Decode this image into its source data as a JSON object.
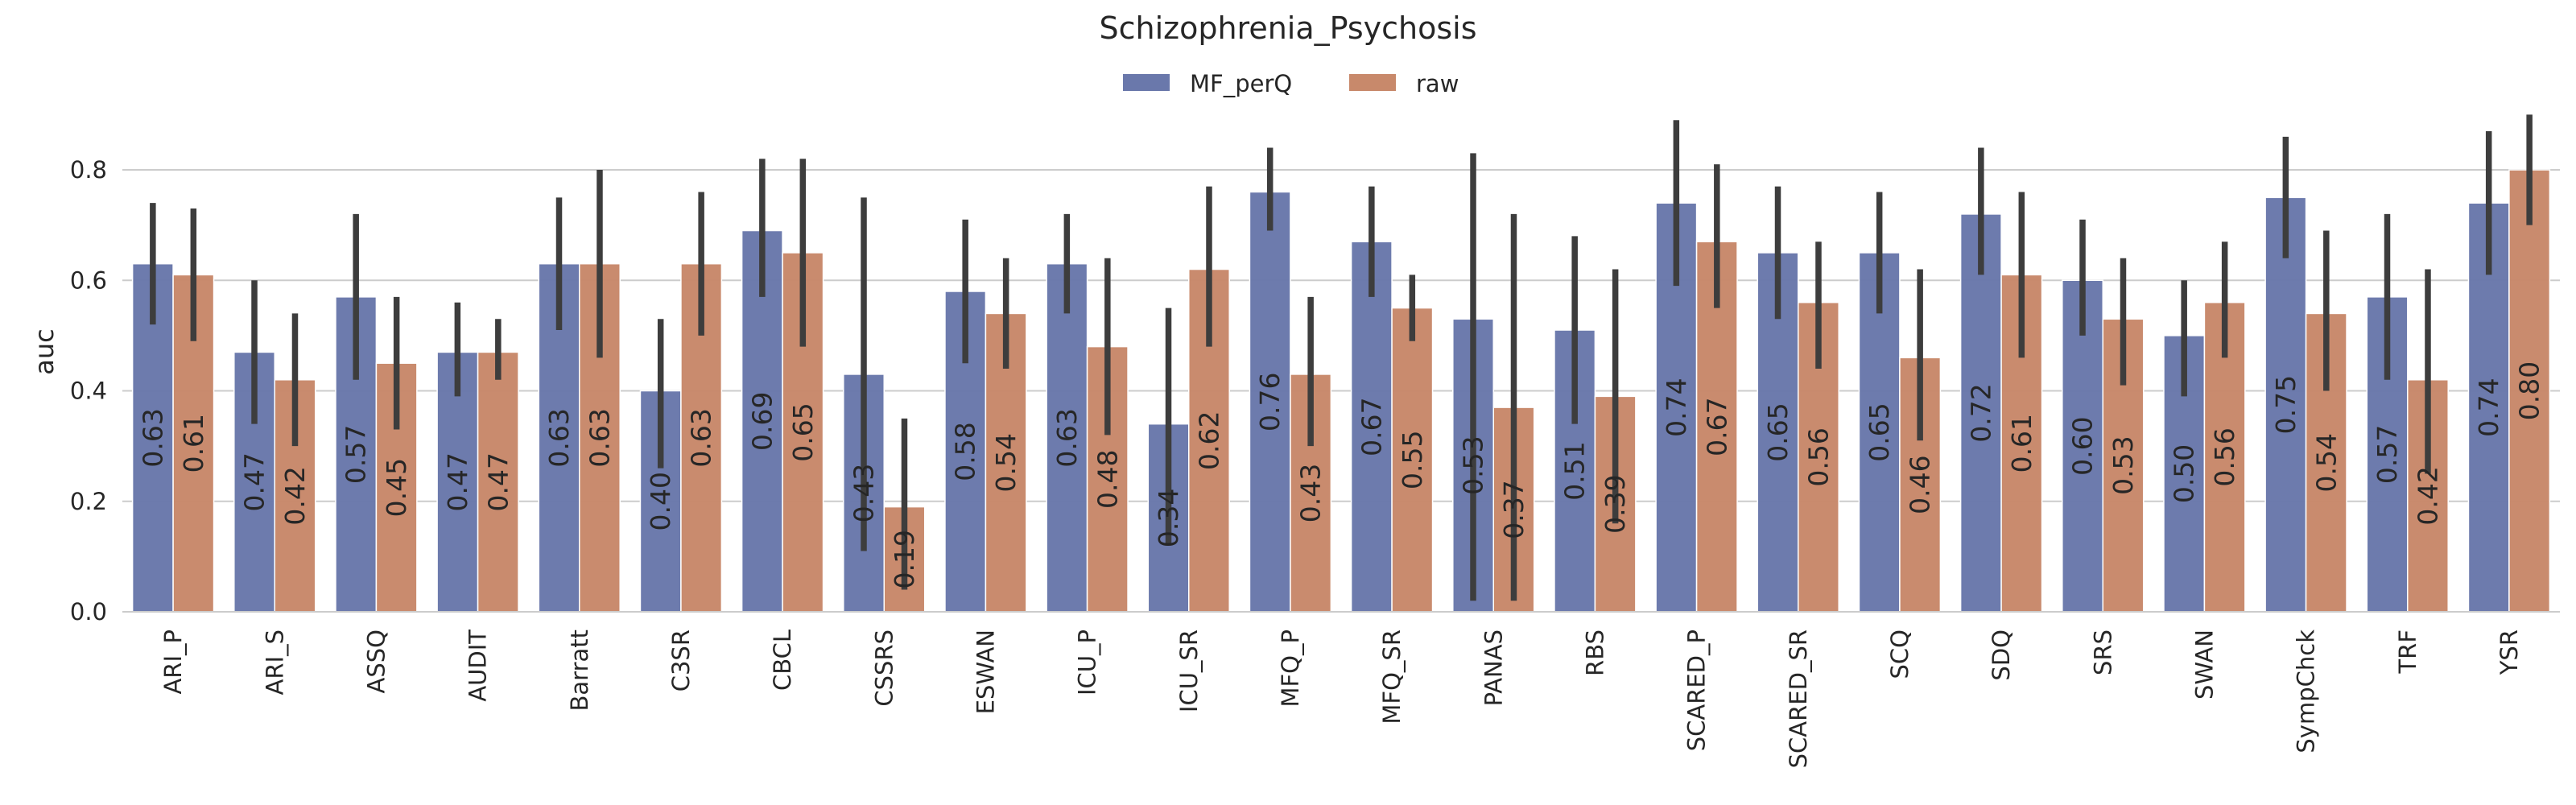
{
  "chart_data": {
    "type": "bar",
    "title": "Schizophrenia_Psychosis",
    "xlabel": "",
    "ylabel": "auc",
    "ylim": [
      0,
      0.9
    ],
    "yticks": [
      0.0,
      0.2,
      0.4,
      0.6,
      0.8
    ],
    "ytick_labels": [
      "0.0",
      "0.2",
      "0.4",
      "0.6",
      "0.8"
    ],
    "grid": true,
    "legend": "top-center",
    "categories": [
      "ARI_P",
      "ARI_S",
      "ASSQ",
      "AUDIT",
      "Barratt",
      "C3SR",
      "CBCL",
      "CSSRS",
      "ESWAN",
      "ICU_P",
      "ICU_SR",
      "MFQ_P",
      "MFQ_SR",
      "PANAS",
      "RBS",
      "SCARED_P",
      "SCARED_SR",
      "SCQ",
      "SDQ",
      "SRS",
      "SWAN",
      "SympChck",
      "TRF",
      "YSR"
    ],
    "series": [
      {
        "name": "MF_perQ",
        "color": "#6a78ab",
        "values": [
          0.63,
          0.47,
          0.57,
          0.47,
          0.63,
          0.4,
          0.69,
          0.43,
          0.58,
          0.63,
          0.34,
          0.76,
          0.67,
          0.53,
          0.51,
          0.74,
          0.65,
          0.65,
          0.72,
          0.6,
          0.5,
          0.75,
          0.57,
          0.74
        ],
        "labels": [
          "0.63",
          "0.47",
          "0.57",
          "0.47",
          "0.63",
          "0.40",
          "0.69",
          "0.43",
          "0.58",
          "0.63",
          "0.34",
          "0.76",
          "0.67",
          "0.53",
          "0.51",
          "0.74",
          "0.65",
          "0.65",
          "0.72",
          "0.60",
          "0.50",
          "0.75",
          "0.57",
          "0.74"
        ],
        "ci_low": [
          0.52,
          0.34,
          0.42,
          0.39,
          0.51,
          0.26,
          0.57,
          0.11,
          0.45,
          0.54,
          0.12,
          0.69,
          0.57,
          0.02,
          0.34,
          0.59,
          0.53,
          0.54,
          0.61,
          0.5,
          0.39,
          0.64,
          0.42,
          0.61
        ],
        "ci_high": [
          0.74,
          0.6,
          0.72,
          0.56,
          0.75,
          0.53,
          0.82,
          0.75,
          0.71,
          0.72,
          0.55,
          0.84,
          0.77,
          0.83,
          0.68,
          0.89,
          0.77,
          0.76,
          0.84,
          0.71,
          0.6,
          0.86,
          0.72,
          0.87
        ]
      },
      {
        "name": "raw",
        "color": "#c8896b",
        "values": [
          0.61,
          0.42,
          0.45,
          0.47,
          0.63,
          0.63,
          0.65,
          0.19,
          0.54,
          0.48,
          0.62,
          0.43,
          0.55,
          0.37,
          0.39,
          0.67,
          0.56,
          0.46,
          0.61,
          0.53,
          0.56,
          0.54,
          0.42,
          0.8
        ],
        "labels": [
          "0.61",
          "0.42",
          "0.45",
          "0.47",
          "0.63",
          "0.63",
          "0.65",
          "0.19",
          "0.54",
          "0.48",
          "0.62",
          "0.43",
          "0.55",
          "0.37",
          "0.39",
          "0.67",
          "0.56",
          "0.46",
          "0.61",
          "0.53",
          "0.56",
          "0.54",
          "0.42",
          "0.80"
        ],
        "ci_low": [
          0.49,
          0.3,
          0.33,
          0.42,
          0.46,
          0.5,
          0.48,
          0.04,
          0.44,
          0.32,
          0.48,
          0.3,
          0.49,
          0.02,
          0.16,
          0.55,
          0.44,
          0.31,
          0.46,
          0.41,
          0.46,
          0.4,
          0.25,
          0.7
        ],
        "ci_high": [
          0.73,
          0.54,
          0.57,
          0.53,
          0.8,
          0.76,
          0.82,
          0.35,
          0.64,
          0.64,
          0.77,
          0.57,
          0.61,
          0.72,
          0.62,
          0.81,
          0.67,
          0.62,
          0.76,
          0.64,
          0.67,
          0.69,
          0.62,
          0.9
        ]
      }
    ]
  }
}
